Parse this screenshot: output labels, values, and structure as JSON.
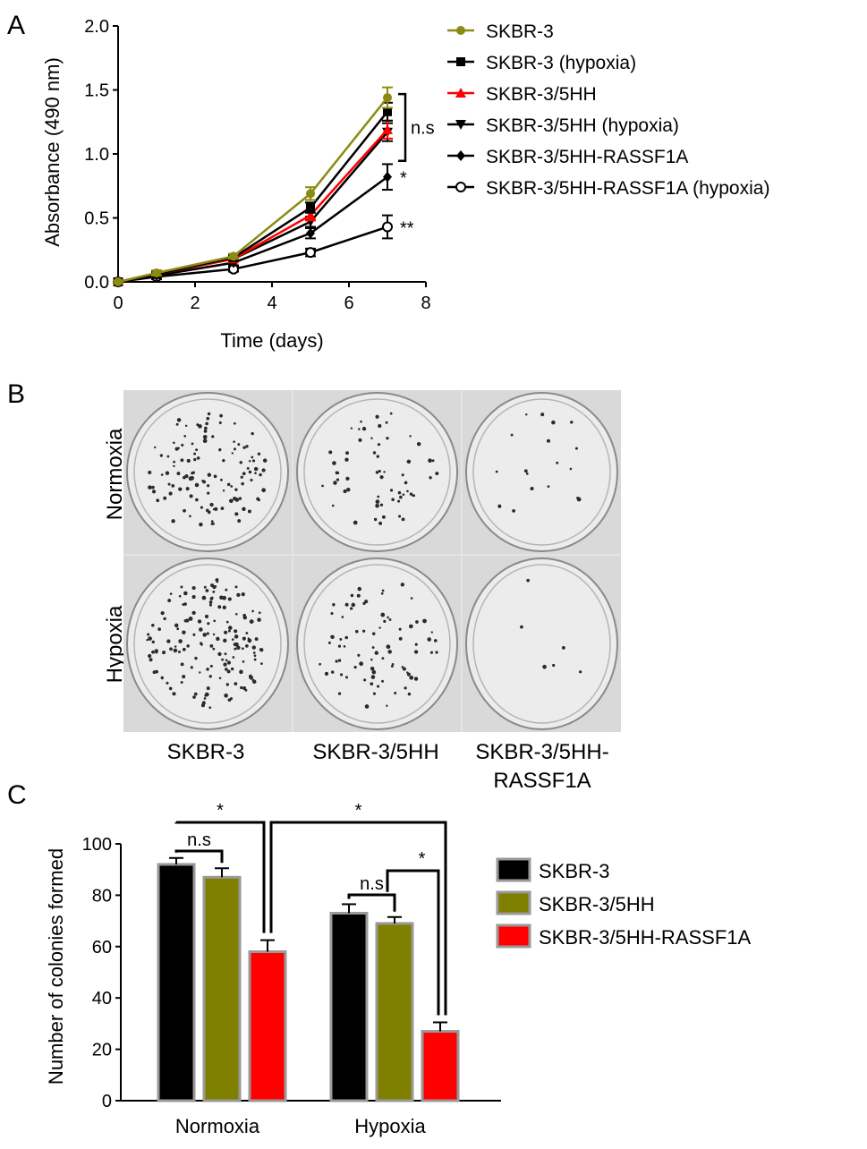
{
  "panels": {
    "a": {
      "letter": "A"
    },
    "b": {
      "letter": "B",
      "row_labels": [
        "Normoxia",
        "Hypoxia"
      ],
      "col_labels": [
        "SKBR-3",
        "SKBR-3/5HH",
        "SKBR-3/5HH-",
        "RASSF1A"
      ]
    },
    "c": {
      "letter": "C"
    }
  },
  "chart_data": [
    {
      "type": "line",
      "panel": "A",
      "xlabel": "Time (days)",
      "ylabel": "Absorbance (490 nm)",
      "xlim": [
        0,
        8
      ],
      "ylim": [
        0.0,
        2.0
      ],
      "xticks": [
        "0",
        "2",
        "4",
        "6",
        "8"
      ],
      "yticks": [
        "0.0",
        "0.5",
        "1.0",
        "1.5",
        "2.0"
      ],
      "x": [
        0,
        1,
        3,
        5,
        7
      ],
      "legend_position": "right",
      "series": [
        {
          "name": "SKBR-3",
          "values": [
            0.0,
            0.07,
            0.2,
            0.69,
            1.44
          ],
          "errors": [
            0.01,
            0.02,
            0.02,
            0.05,
            0.08
          ],
          "color": "#8b8b14",
          "marker": "circle-filled"
        },
        {
          "name": "SKBR-3 (hypoxia)",
          "values": [
            0.0,
            0.06,
            0.19,
            0.58,
            1.33
          ],
          "errors": [
            0.01,
            0.02,
            0.02,
            0.04,
            0.07
          ],
          "color": "#000000",
          "marker": "square"
        },
        {
          "name": "SKBR-3/5HH",
          "values": [
            0.0,
            0.06,
            0.18,
            0.52,
            1.19
          ],
          "errors": [
            0.01,
            0.02,
            0.02,
            0.04,
            0.07
          ],
          "color": "#ff0000",
          "marker": "triangle-up"
        },
        {
          "name": "SKBR-3/5HH (hypoxia)",
          "values": [
            0.0,
            0.06,
            0.18,
            0.47,
            1.17
          ],
          "errors": [
            0.01,
            0.02,
            0.02,
            0.04,
            0.07
          ],
          "color": "#000000",
          "marker": "triangle-down"
        },
        {
          "name": "SKBR-3/5HH-RASSF1A",
          "values": [
            0.0,
            0.05,
            0.15,
            0.38,
            0.82
          ],
          "errors": [
            0.01,
            0.02,
            0.02,
            0.04,
            0.1
          ],
          "color": "#000000",
          "marker": "diamond"
        },
        {
          "name": "SKBR-3/5HH-RASSF1A (hypoxia)",
          "values": [
            0.0,
            0.04,
            0.1,
            0.23,
            0.43
          ],
          "errors": [
            0.01,
            0.02,
            0.02,
            0.03,
            0.09
          ],
          "color": "#000000",
          "marker": "circle-open"
        }
      ],
      "annotations": [
        {
          "text": "n.s",
          "x": 7,
          "y_from": 1.17,
          "y_to": 1.44
        },
        {
          "text": "*",
          "x": 7,
          "y": 0.82
        },
        {
          "text": "**",
          "x": 7,
          "y": 0.43
        }
      ]
    },
    {
      "type": "bar",
      "panel": "C",
      "ylabel": "Number of colonies formed",
      "ylim": [
        0,
        100
      ],
      "yticks": [
        "0",
        "20",
        "40",
        "60",
        "80",
        "100"
      ],
      "categories": [
        "Normoxia",
        "Hypoxia"
      ],
      "legend_position": "right",
      "series": [
        {
          "name": "SKBR-3",
          "values": [
            92,
            73
          ],
          "errors": [
            2.5,
            3.5
          ],
          "color": "#000000"
        },
        {
          "name": "SKBR-3/5HH",
          "values": [
            87,
            69
          ],
          "errors": [
            3.5,
            2.5
          ],
          "color": "#808000"
        },
        {
          "name": "SKBR-3/5HH-RASSF1A",
          "values": [
            58,
            27
          ],
          "errors": [
            4.5,
            3.5
          ],
          "color": "#ff0000"
        }
      ],
      "comparisons": [
        {
          "text": "n.s",
          "category": 0,
          "from": 0,
          "to": 1
        },
        {
          "text": "*",
          "category_from": 0,
          "from": 0,
          "category_to": 0,
          "to": 2
        },
        {
          "text": "*",
          "category_from": 0,
          "from": 2,
          "category_to": 1,
          "to": 2
        },
        {
          "text": "n.s",
          "category": 1,
          "from": 0,
          "to": 1
        },
        {
          "text": "*",
          "category": 1,
          "from": 1,
          "to": 2
        }
      ]
    }
  ]
}
